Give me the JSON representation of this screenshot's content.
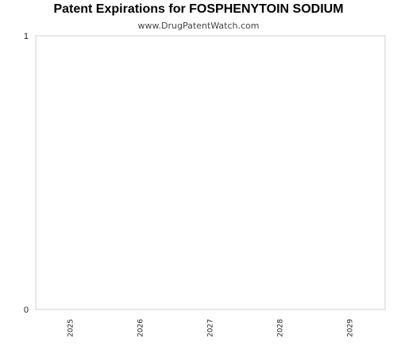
{
  "header": {
    "title": "Patent Expirations for FOSPHENYTOIN SODIUM",
    "subtitle": "www.DrugPatentWatch.com"
  },
  "colors": {
    "plot_border": "#d0d0d0",
    "text": "#222222"
  },
  "chart_data": {
    "type": "bar",
    "title": "Patent Expirations for FOSPHENYTOIN SODIUM",
    "subtitle": "www.DrugPatentWatch.com",
    "xlabel": "",
    "ylabel": "",
    "categories": [
      "2025",
      "2026",
      "2027",
      "2028",
      "2029"
    ],
    "values": [
      0,
      0,
      0,
      0,
      0
    ],
    "ylim": [
      0,
      1
    ],
    "yticks": [
      "0",
      "1"
    ],
    "grid": false,
    "legend": "none"
  }
}
